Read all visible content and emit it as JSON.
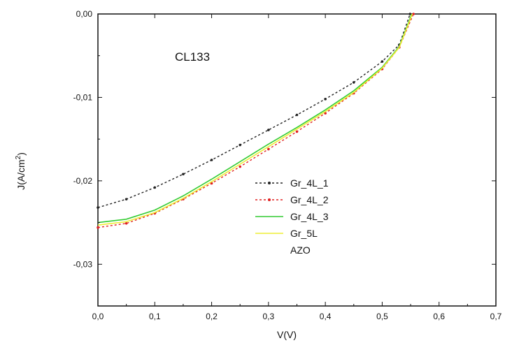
{
  "chart_data": {
    "type": "line",
    "annotation": "CL133",
    "xlabel": "V(V)",
    "ylabel_base": "J(A/cm",
    "ylabel_sup": "2",
    "ylabel_close": ")",
    "xlim": [
      0.0,
      0.7
    ],
    "ylim": [
      -0.035,
      0.0
    ],
    "xticks": [
      0.0,
      0.1,
      0.2,
      0.3,
      0.4,
      0.5,
      0.6,
      0.7
    ],
    "xtick_labels": [
      "0,0",
      "0,1",
      "0,2",
      "0,3",
      "0,4",
      "0,5",
      "0,6",
      "0,7"
    ],
    "yticks": [
      0.0,
      -0.01,
      -0.02,
      -0.03
    ],
    "ytick_labels": [
      "0,00",
      "-0,01",
      "-0,02",
      "-0,03"
    ],
    "grid": false,
    "legend_position": "center",
    "series": [
      {
        "name": "Gr_4L_1",
        "color": "#222222",
        "dash": "3,3",
        "markers": true,
        "x": [
          0.0,
          0.05,
          0.1,
          0.15,
          0.2,
          0.25,
          0.3,
          0.35,
          0.4,
          0.45,
          0.5,
          0.53,
          0.549
        ],
        "y": [
          -0.0232,
          -0.0222,
          -0.0208,
          -0.0192,
          -0.0175,
          -0.0157,
          -0.0139,
          -0.0121,
          -0.0102,
          -0.0082,
          -0.0057,
          -0.0037,
          0.0
        ]
      },
      {
        "name": "Gr_4L_2",
        "color": "#e02020",
        "dash": "3,3",
        "markers": true,
        "x": [
          0.0,
          0.05,
          0.1,
          0.15,
          0.2,
          0.25,
          0.3,
          0.35,
          0.4,
          0.45,
          0.5,
          0.53,
          0.555
        ],
        "y": [
          -0.0256,
          -0.0251,
          -0.0239,
          -0.0222,
          -0.0203,
          -0.0183,
          -0.0162,
          -0.0141,
          -0.0119,
          -0.0095,
          -0.0066,
          -0.004,
          0.0
        ]
      },
      {
        "name": "Gr_4L_3",
        "color": "#33cc33",
        "dash": "",
        "markers": false,
        "x": [
          0.0,
          0.05,
          0.1,
          0.15,
          0.2,
          0.25,
          0.3,
          0.35,
          0.4,
          0.45,
          0.5,
          0.53,
          0.552
        ],
        "y": [
          -0.025,
          -0.0246,
          -0.0235,
          -0.0218,
          -0.0198,
          -0.0177,
          -0.0156,
          -0.0136,
          -0.0115,
          -0.0092,
          -0.0064,
          -0.0039,
          0.0
        ]
      },
      {
        "name": "Gr_5L",
        "color": "#eeee33",
        "dash": "",
        "markers": false,
        "x": [
          0.0,
          0.05,
          0.1,
          0.15,
          0.2,
          0.25,
          0.3,
          0.35,
          0.4,
          0.45,
          0.5,
          0.53,
          0.553
        ],
        "y": [
          -0.0253,
          -0.0249,
          -0.0238,
          -0.0221,
          -0.0201,
          -0.018,
          -0.0159,
          -0.0138,
          -0.0117,
          -0.0094,
          -0.0065,
          -0.004,
          0.0
        ]
      },
      {
        "name": "AZO",
        "color": "#ffffff",
        "dash": "",
        "markers": false,
        "x": [],
        "y": []
      }
    ]
  }
}
